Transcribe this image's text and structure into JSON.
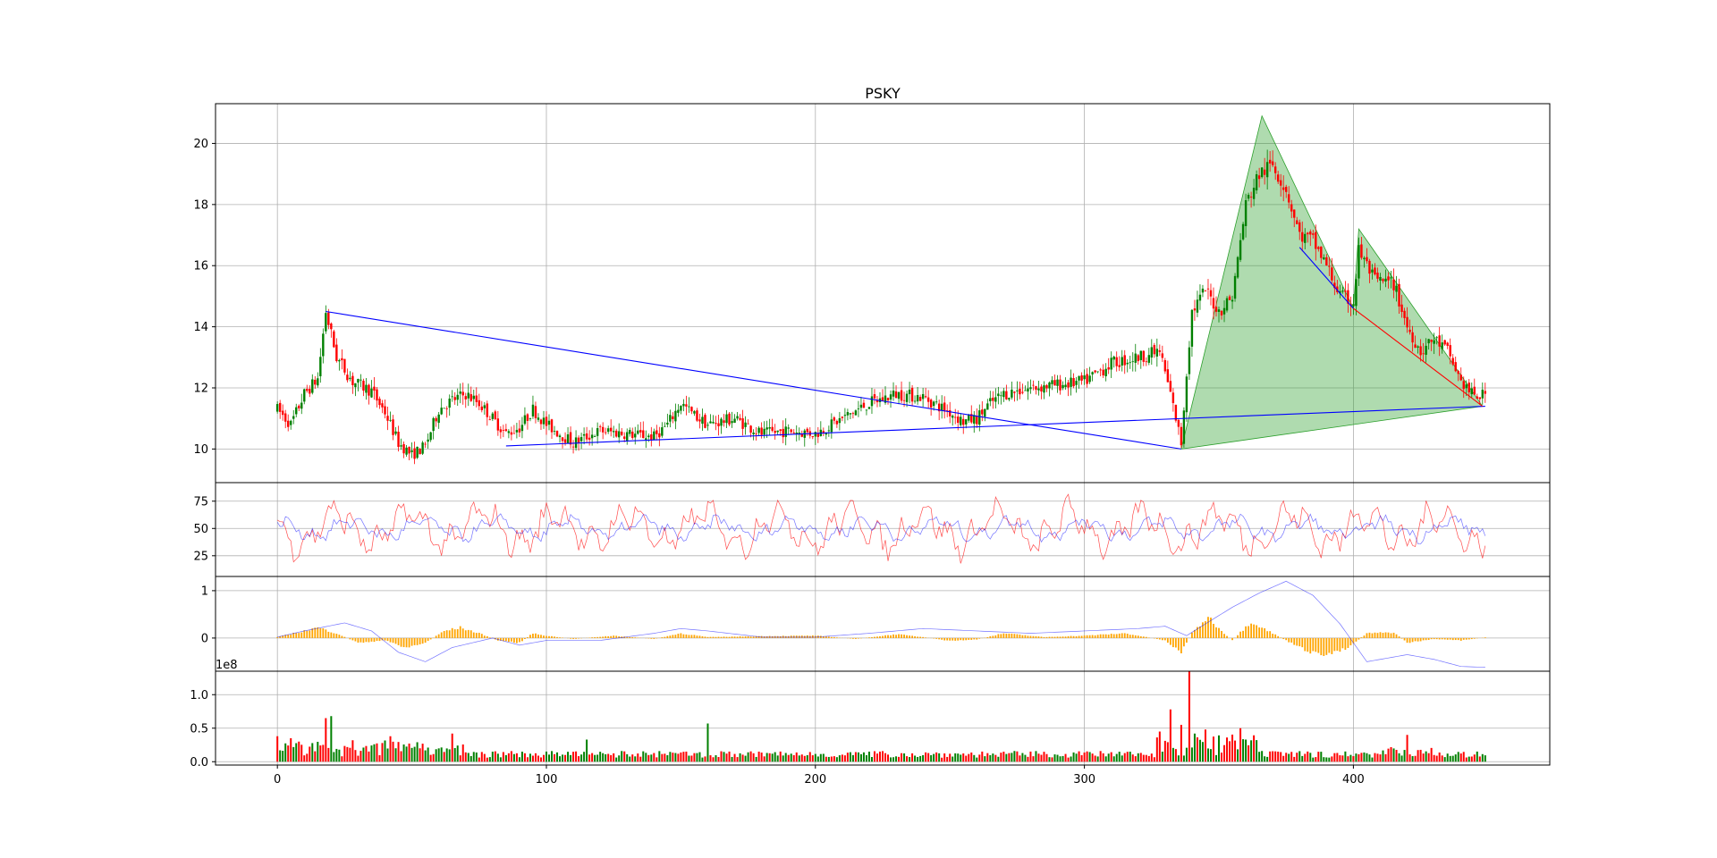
{
  "chart_data": {
    "type": "candlestick",
    "title": "PSKY",
    "xlim": [
      -23,
      473
    ],
    "x_ticks": [
      "0",
      "100",
      "200",
      "300",
      "400"
    ],
    "up_color": "#008000",
    "down_color": "#ff0000",
    "trendline_color": "#0000ff",
    "pattern_fill_color": "#2ca02c",
    "panels": [
      {
        "name": "price",
        "ylim": [
          8.9,
          21.3
        ],
        "y_ticks": [
          "10",
          "12",
          "14",
          "16",
          "18",
          "20"
        ],
        "keypoints": [
          [
            0,
            11.3
          ],
          [
            5,
            10.8
          ],
          [
            10,
            11.8
          ],
          [
            15,
            12.3
          ],
          [
            18,
            14.5
          ],
          [
            22,
            13.0
          ],
          [
            28,
            12.2
          ],
          [
            35,
            11.9
          ],
          [
            40,
            11.2
          ],
          [
            45,
            10.2
          ],
          [
            50,
            9.8
          ],
          [
            55,
            10.1
          ],
          [
            60,
            11.3
          ],
          [
            65,
            11.6
          ],
          [
            70,
            11.8
          ],
          [
            75,
            11.5
          ],
          [
            80,
            11.0
          ],
          [
            85,
            10.5
          ],
          [
            90,
            10.7
          ],
          [
            95,
            11.3
          ],
          [
            100,
            10.8
          ],
          [
            110,
            10.2
          ],
          [
            120,
            10.6
          ],
          [
            130,
            10.5
          ],
          [
            140,
            10.4
          ],
          [
            145,
            10.8
          ],
          [
            150,
            11.5
          ],
          [
            155,
            11.1
          ],
          [
            160,
            10.8
          ],
          [
            170,
            11.0
          ],
          [
            180,
            10.5
          ],
          [
            190,
            10.6
          ],
          [
            200,
            10.5
          ],
          [
            210,
            11.0
          ],
          [
            220,
            11.5
          ],
          [
            230,
            11.8
          ],
          [
            240,
            11.7
          ],
          [
            250,
            11.2
          ],
          [
            255,
            10.9
          ],
          [
            260,
            11.0
          ],
          [
            265,
            11.5
          ],
          [
            270,
            11.8
          ],
          [
            280,
            12.0
          ],
          [
            290,
            12.1
          ],
          [
            300,
            12.2
          ],
          [
            310,
            12.8
          ],
          [
            320,
            13.0
          ],
          [
            328,
            13.2
          ],
          [
            332,
            11.8
          ],
          [
            336,
            10.2
          ],
          [
            338,
            12.5
          ],
          [
            340,
            14.5
          ],
          [
            345,
            15.2
          ],
          [
            350,
            14.5
          ],
          [
            355,
            15.0
          ],
          [
            360,
            18.0
          ],
          [
            365,
            19.0
          ],
          [
            370,
            19.3
          ],
          [
            375,
            18.5
          ],
          [
            380,
            17.0
          ],
          [
            385,
            16.8
          ],
          [
            390,
            16.0
          ],
          [
            395,
            15.0
          ],
          [
            400,
            14.8
          ],
          [
            402,
            16.5
          ],
          [
            408,
            15.5
          ],
          [
            415,
            15.4
          ],
          [
            420,
            14.0
          ],
          [
            425,
            13.2
          ],
          [
            430,
            13.6
          ],
          [
            435,
            13.2
          ],
          [
            440,
            12.2
          ],
          [
            445,
            11.7
          ],
          [
            450,
            11.8
          ]
        ],
        "trendlines": [
          {
            "from": [
              18,
              14.5
            ],
            "to": [
              336,
              10.0
            ]
          },
          {
            "from": [
              85,
              10.1
            ],
            "to": [
              449,
              11.4
            ]
          },
          {
            "from": [
              380,
              16.6
            ],
            "to": [
              400,
              14.6
            ]
          }
        ],
        "red_line": {
          "from": [
            400,
            14.6
          ],
          "to": [
            448,
            11.4
          ]
        },
        "harmonic_pattern": [
          [
            336,
            10.0
          ],
          [
            366,
            20.9
          ],
          [
            400,
            14.6
          ],
          [
            402,
            17.2
          ],
          [
            448,
            11.4
          ]
        ]
      },
      {
        "name": "oscillator",
        "ylim": [
          6,
          92
        ],
        "y_ticks": [
          "25",
          "50",
          "75"
        ],
        "lines": [
          {
            "color": "#ff0000",
            "center": 50,
            "amplitude": 26
          },
          {
            "color": "#0000ff",
            "center": 50,
            "amplitude": 12
          }
        ]
      },
      {
        "name": "macd",
        "ylim": [
          -0.7,
          1.3
        ],
        "y_ticks": [
          "1",
          "0"
        ],
        "histogram_color": "#ffa500",
        "signal_color": "#0000ff",
        "signal_keypoints": [
          [
            0,
            0.02
          ],
          [
            10,
            0.15
          ],
          [
            25,
            0.32
          ],
          [
            35,
            0.15
          ],
          [
            45,
            -0.3
          ],
          [
            55,
            -0.5
          ],
          [
            65,
            -0.2
          ],
          [
            80,
            0.0
          ],
          [
            90,
            -0.15
          ],
          [
            100,
            -0.05
          ],
          [
            120,
            -0.05
          ],
          [
            140,
            0.1
          ],
          [
            150,
            0.2
          ],
          [
            160,
            0.15
          ],
          [
            180,
            0.02
          ],
          [
            200,
            0.02
          ],
          [
            220,
            0.1
          ],
          [
            240,
            0.2
          ],
          [
            260,
            0.15
          ],
          [
            280,
            0.1
          ],
          [
            300,
            0.15
          ],
          [
            320,
            0.2
          ],
          [
            330,
            0.25
          ],
          [
            338,
            0.05
          ],
          [
            345,
            0.3
          ],
          [
            355,
            0.65
          ],
          [
            365,
            0.95
          ],
          [
            375,
            1.2
          ],
          [
            385,
            0.9
          ],
          [
            395,
            0.3
          ],
          [
            405,
            -0.5
          ],
          [
            420,
            -0.35
          ],
          [
            430,
            -0.45
          ],
          [
            440,
            -0.6
          ],
          [
            450,
            -0.62
          ]
        ],
        "hist_keypoints": [
          [
            0,
            0.02
          ],
          [
            10,
            0.15
          ],
          [
            15,
            0.22
          ],
          [
            22,
            0.1
          ],
          [
            30,
            -0.1
          ],
          [
            40,
            -0.05
          ],
          [
            48,
            -0.2
          ],
          [
            55,
            -0.1
          ],
          [
            62,
            0.15
          ],
          [
            68,
            0.22
          ],
          [
            75,
            0.1
          ],
          [
            82,
            -0.05
          ],
          [
            90,
            -0.1
          ],
          [
            95,
            0.1
          ],
          [
            100,
            0.05
          ],
          [
            110,
            -0.02
          ],
          [
            125,
            0.05
          ],
          [
            140,
            -0.02
          ],
          [
            150,
            0.1
          ],
          [
            160,
            0.02
          ],
          [
            180,
            0.04
          ],
          [
            200,
            0.05
          ],
          [
            215,
            -0.02
          ],
          [
            230,
            0.08
          ],
          [
            240,
            0.02
          ],
          [
            250,
            -0.06
          ],
          [
            260,
            -0.03
          ],
          [
            270,
            0.1
          ],
          [
            285,
            0.02
          ],
          [
            300,
            0.05
          ],
          [
            315,
            0.1
          ],
          [
            330,
            -0.05
          ],
          [
            336,
            -0.3
          ],
          [
            340,
            0.1
          ],
          [
            346,
            0.45
          ],
          [
            350,
            0.2
          ],
          [
            355,
            -0.05
          ],
          [
            362,
            0.35
          ],
          [
            370,
            0.1
          ],
          [
            380,
            -0.2
          ],
          [
            388,
            -0.38
          ],
          [
            398,
            -0.2
          ],
          [
            405,
            0.1
          ],
          [
            415,
            0.12
          ],
          [
            420,
            -0.1
          ],
          [
            430,
            -0.02
          ],
          [
            440,
            -0.05
          ],
          [
            450,
            0.02
          ]
        ]
      },
      {
        "name": "volume",
        "ylim": [
          -0.05,
          1.35
        ],
        "y_ticks": [
          "0.0",
          "0.5",
          "1.0"
        ],
        "scale_label": "1e8",
        "spikes": [
          [
            0,
            0.38
          ],
          [
            5,
            0.35
          ],
          [
            8,
            0.3
          ],
          [
            18,
            0.65
          ],
          [
            20,
            0.68
          ],
          [
            28,
            0.32
          ],
          [
            42,
            0.38
          ],
          [
            65,
            0.42
          ],
          [
            115,
            0.33
          ],
          [
            160,
            0.57
          ],
          [
            328,
            0.45
          ],
          [
            332,
            0.78
          ],
          [
            336,
            0.55
          ],
          [
            339,
            1.35
          ],
          [
            345,
            0.48
          ],
          [
            358,
            0.5
          ],
          [
            360,
            0.33
          ],
          [
            420,
            0.4
          ]
        ]
      }
    ]
  }
}
